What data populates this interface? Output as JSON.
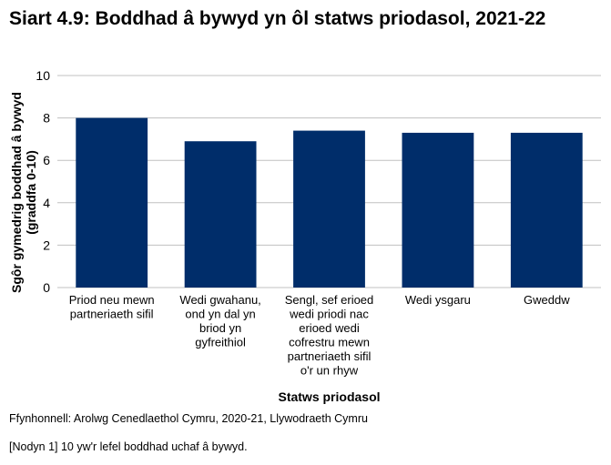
{
  "chart_data": {
    "type": "bar",
    "title": "Siart 4.9: Boddhad â bywyd yn ôl statws priodasol, 2021-22",
    "xlabel": "Statws priodasol",
    "ylabel": [
      "Sgôr gymedrig boddhad â bywyd",
      "(graddfa 0-10)"
    ],
    "ylim": [
      0,
      10
    ],
    "yticks": [
      0,
      2,
      4,
      6,
      8,
      10
    ],
    "grid": true,
    "categories": [
      [
        "Priod neu mewn",
        "partneriaeth sifil"
      ],
      [
        "Wedi gwahanu,",
        "ond yn dal yn",
        "briod yn",
        "gyfreithiol"
      ],
      [
        "Sengl, sef erioed",
        "wedi priodi nac",
        "erioed wedi",
        "cofrestru mewn",
        "partneriaeth sifil",
        "o'r un rhyw"
      ],
      [
        "Wedi ysgaru"
      ],
      [
        "Gweddw"
      ]
    ],
    "values": [
      8.0,
      6.9,
      7.4,
      7.3,
      7.3
    ],
    "bar_color": "#002D6A"
  },
  "source": "Ffynhonnell: Arolwg Cenedlaethol Cymru, 2020-21, Llywodraeth Cymru",
  "note": "[Nodyn 1] 10 yw'r lefel boddhad uchaf â bywyd."
}
